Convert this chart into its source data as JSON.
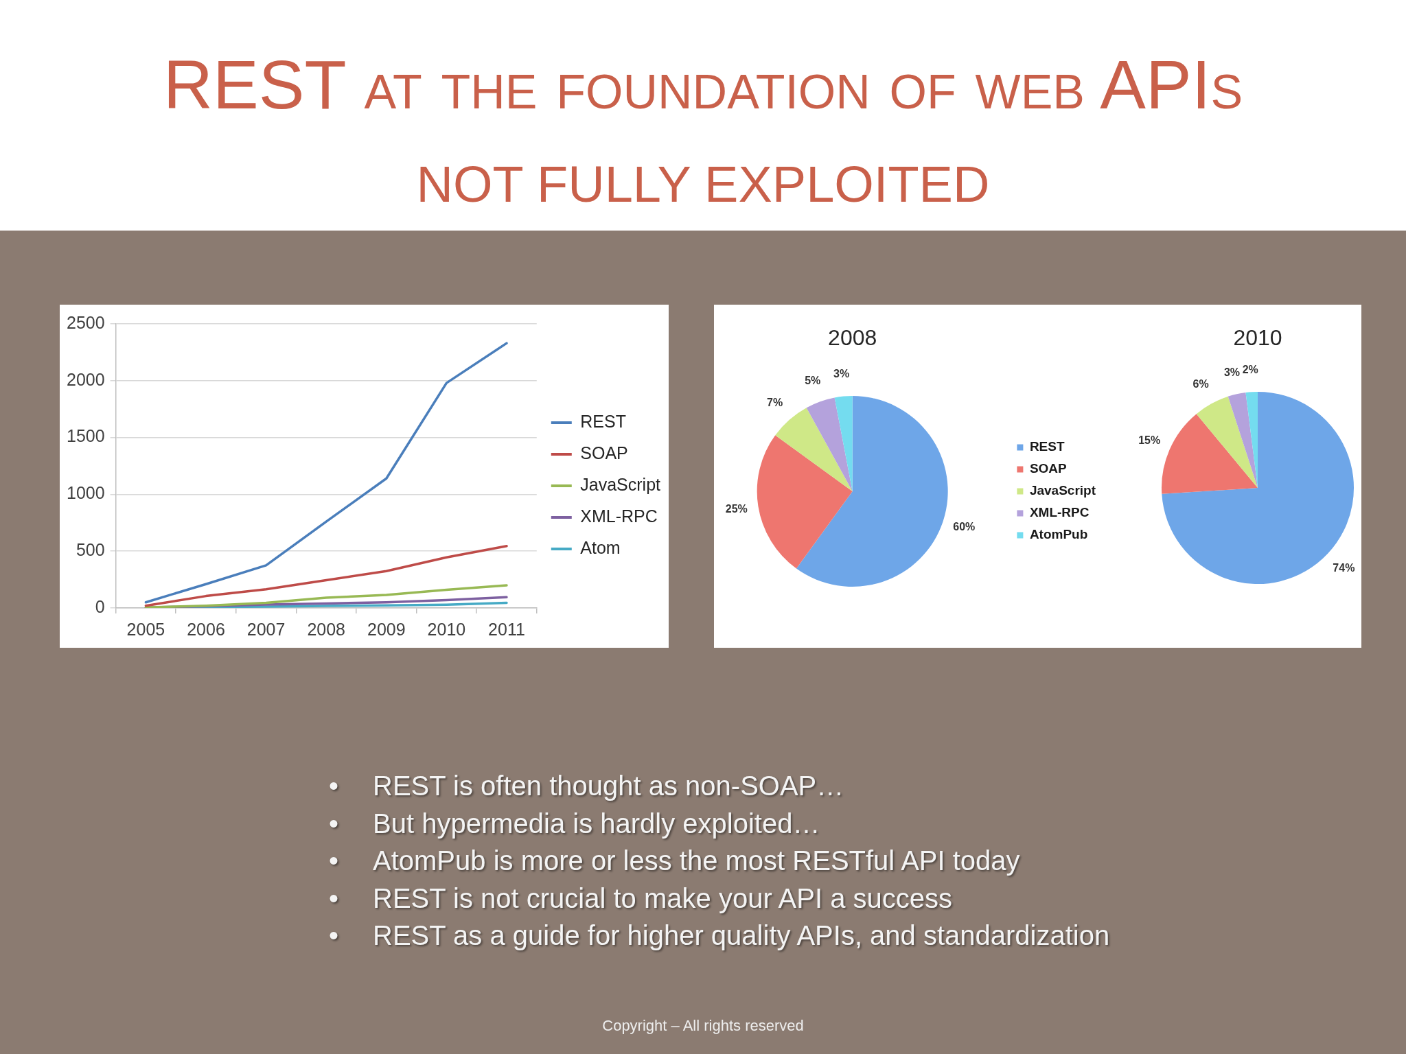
{
  "chart_data": [
    {
      "type": "other",
      "title": "REST at the foundation of web APIs",
      "subtitle": "NOT FULLY EXPLOITED"
    },
    {
      "type": "line",
      "categories": [
        "2005",
        "2006",
        "2007",
        "2008",
        "2009",
        "2010",
        "2011"
      ],
      "series": [
        {
          "name": "REST",
          "color": "#4a7ebb",
          "values": [
            50,
            210,
            375,
            760,
            1140,
            1980,
            2330
          ]
        },
        {
          "name": "SOAP",
          "color": "#be4b48",
          "values": [
            20,
            105,
            165,
            245,
            325,
            445,
            545
          ]
        },
        {
          "name": "JavaScript",
          "color": "#98b954",
          "values": [
            5,
            20,
            45,
            90,
            115,
            160,
            200
          ]
        },
        {
          "name": "XML-RPC",
          "color": "#7d60a0",
          "values": [
            5,
            15,
            30,
            40,
            50,
            70,
            95
          ]
        },
        {
          "name": "Atom",
          "color": "#46aac5",
          "values": [
            2,
            8,
            12,
            18,
            22,
            28,
            45
          ]
        }
      ],
      "ylim": [
        0,
        2500
      ],
      "yticks": [
        0,
        500,
        1000,
        1500,
        2000,
        2500
      ],
      "grid": "y",
      "legend": "right",
      "marker": "none"
    },
    {
      "type": "pie",
      "title": "2008",
      "categories": [
        "REST",
        "SOAP",
        "JavaScript",
        "XML-RPC",
        "AtomPub"
      ],
      "values": [
        60,
        25,
        7,
        5,
        3
      ],
      "colors": [
        "#6ea6e8",
        "#ee766f",
        "#cfe887",
        "#b4a2dc",
        "#74dcef"
      ],
      "value_labels": [
        "60%",
        "25%",
        "7%",
        "5%",
        "3%"
      ],
      "legend": "right"
    },
    {
      "type": "pie",
      "title": "2010",
      "categories": [
        null,
        null,
        null,
        null,
        null
      ],
      "values": [
        74,
        15,
        6,
        3,
        2
      ],
      "colors": [
        "#6ea6e8",
        "#ee766f",
        "#cfe887",
        "#b4a2dc",
        "#74dcef"
      ],
      "value_labels": [
        "74%",
        "15%",
        "6%",
        "3%",
        "2%"
      ]
    },
    {
      "type": "other",
      "annotations": [
        "•\tREST is often thought as non-SOAP…",
        "•\tBut hypermedia is hardly exploited…",
        "•\tAtomPub is more or less the most RESTful API today",
        "•\tREST is not crucial to make your API a success",
        "•\tREST as a guide for higher quality APIs, and standardization"
      ]
    },
    {
      "type": "other",
      "annotations": [
        "Copyright – All rights reserved"
      ]
    }
  ]
}
